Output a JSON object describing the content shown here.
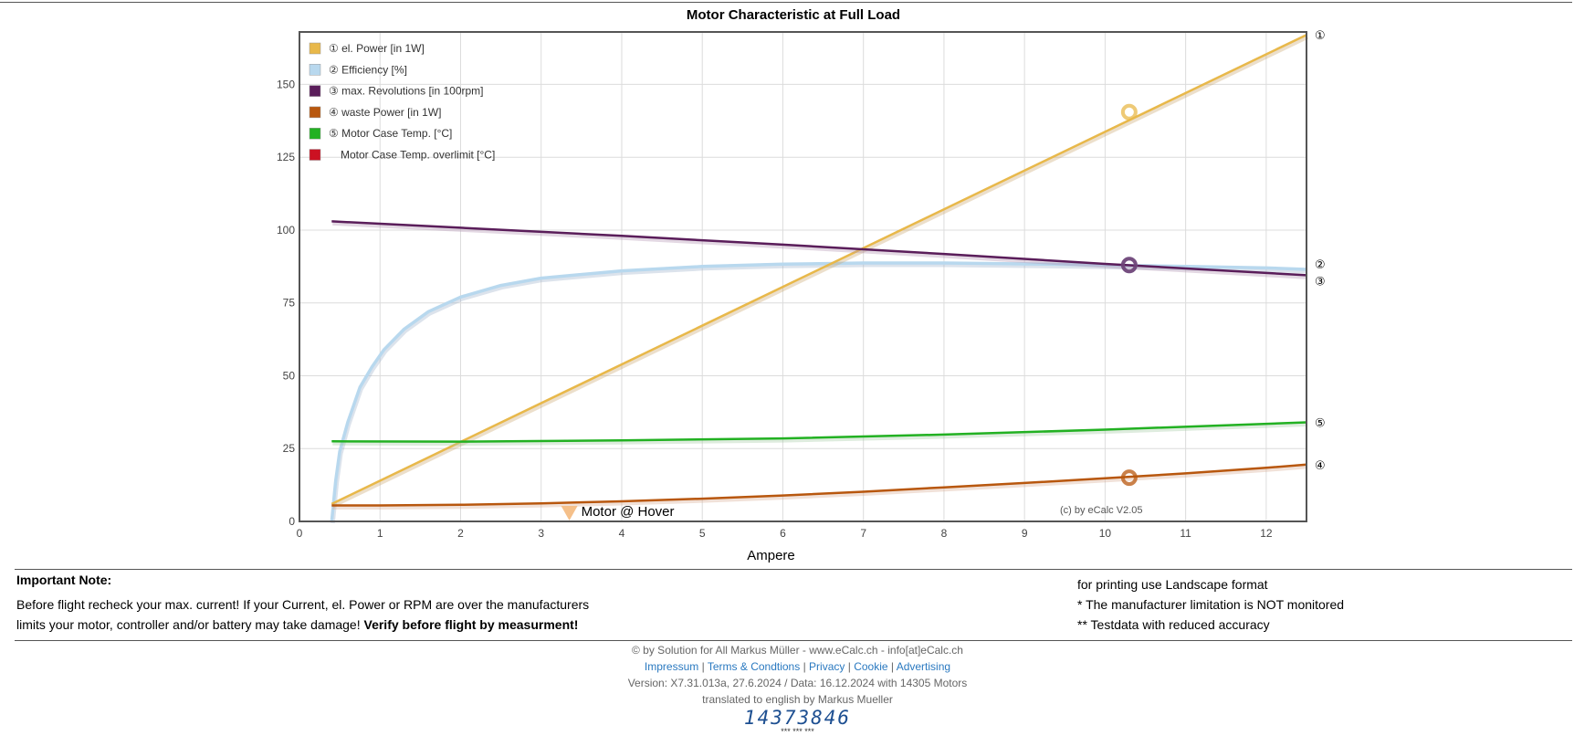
{
  "chart_data": {
    "type": "line",
    "title": "Motor Characteristic at Full Load",
    "xlabel": "Ampere",
    "ylabel": "",
    "xlim": [
      0,
      12.5
    ],
    "ylim": [
      0,
      168
    ],
    "xticks": [
      "0",
      "1",
      "2",
      "3",
      "4",
      "5",
      "6",
      "7",
      "8",
      "9",
      "10",
      "11",
      "12"
    ],
    "yticks": [
      "0",
      "25",
      "50",
      "75",
      "100",
      "125",
      "150"
    ],
    "grid": true,
    "legend_position": "top-left",
    "copyright": "(c) by eCalc  V2.05",
    "series": [
      {
        "name": "① el. Power [in 1W]",
        "end_marker": "①",
        "color": "#e8b84a",
        "shadow": "#c9a46a",
        "points": [
          [
            0.4,
            6
          ],
          [
            12.5,
            167
          ]
        ],
        "highlight": [
          10.3,
          140.5
        ]
      },
      {
        "name": "② Efficiency [%]",
        "end_marker": "②",
        "color": "#b8d8ee",
        "shadow": "#9ab0c8",
        "points": [
          [
            0.4,
            0
          ],
          [
            0.45,
            14
          ],
          [
            0.5,
            24
          ],
          [
            0.6,
            34
          ],
          [
            0.75,
            46
          ],
          [
            0.9,
            53
          ],
          [
            1.05,
            59
          ],
          [
            1.3,
            66
          ],
          [
            1.6,
            72
          ],
          [
            2,
            77
          ],
          [
            2.5,
            81
          ],
          [
            3,
            83.5
          ],
          [
            4,
            86
          ],
          [
            5,
            87.5
          ],
          [
            6,
            88.3
          ],
          [
            7,
            88.7
          ],
          [
            8,
            88.7
          ],
          [
            9,
            88.4
          ],
          [
            10,
            88
          ],
          [
            11,
            87.5
          ],
          [
            12,
            87
          ],
          [
            12.5,
            86.5
          ]
        ],
        "highlight": [
          10.3,
          88
        ]
      },
      {
        "name": "③ max. Revolutions [in 100rpm]",
        "end_marker": "③",
        "color": "#5a1d5a",
        "shadow": "#b090b0",
        "points": [
          [
            0.4,
            103
          ],
          [
            2,
            100.8
          ],
          [
            4,
            98
          ],
          [
            6,
            95
          ],
          [
            8,
            91.8
          ],
          [
            10,
            88.4
          ],
          [
            12.5,
            84.5
          ]
        ],
        "highlight": [
          10.3,
          88
        ]
      },
      {
        "name": "④ waste Power [in 1W]",
        "end_marker": "④",
        "color": "#b8570e",
        "shadow": "#d8a890",
        "points": [
          [
            0.4,
            5.5
          ],
          [
            1,
            5.5
          ],
          [
            2,
            5.7
          ],
          [
            3,
            6.2
          ],
          [
            4,
            6.9
          ],
          [
            5,
            7.8
          ],
          [
            6,
            8.9
          ],
          [
            7,
            10.2
          ],
          [
            8,
            11.7
          ],
          [
            9,
            13.2
          ],
          [
            10,
            14.8
          ],
          [
            11,
            16.5
          ],
          [
            12,
            18.4
          ],
          [
            12.5,
            19.5
          ]
        ],
        "highlight": [
          10.3,
          15
        ]
      },
      {
        "name": "⑤ Motor Case Temp. [°C]",
        "end_marker": "⑤",
        "color": "#22b122",
        "shadow": "#a0c8a0",
        "points": [
          [
            0.4,
            27.5
          ],
          [
            2,
            27.4
          ],
          [
            4,
            27.8
          ],
          [
            6,
            28.5
          ],
          [
            8,
            29.8
          ],
          [
            10,
            31.5
          ],
          [
            12.5,
            34
          ]
        ],
        "highlight": null
      },
      {
        "name": "Motor Case Temp. overlimit [°C]",
        "end_marker": "",
        "color": "#cc1122",
        "shadow": "#cc1122",
        "points": [],
        "highlight": null
      }
    ],
    "annotation": {
      "label": "Motor @ Hover",
      "x": 3.35,
      "y": 0,
      "color": "#f5c08a"
    }
  },
  "note": {
    "title": "Important Note:",
    "line1": "Before flight recheck your max. current! If your Current, el. Power or RPM are over the manufacturers",
    "line2_plain": "limits your motor, controller and/or battery may take damage! ",
    "line2_bold": "Verify before flight by measurment!",
    "right1": "for printing use Landscape format",
    "right2": "* The manufacturer limitation is NOT monitored",
    "right3": "** Testdata with reduced accuracy"
  },
  "footer": {
    "copyright": "© by Solution for All Markus Müller  -  www.eCalc.ch  -  info[at]eCalc.ch",
    "links": [
      "Impressum",
      "Terms & Condtions",
      "Privacy",
      "Cookie",
      "Advertising"
    ],
    "version": "Version: X7.31.013a, 27.6.2024 / Data: 16.12.2024 with 14305 Motors",
    "translated": "translated to english by Markus Mueller",
    "counter": "14373846",
    "stars": "*** *** ***"
  }
}
